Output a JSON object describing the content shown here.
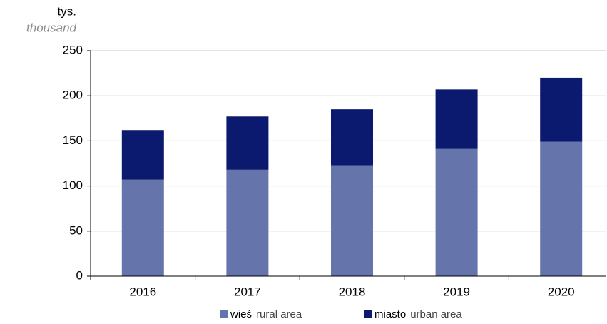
{
  "chart_data": {
    "type": "stacked_bar",
    "y_label": "tys.",
    "y_label_en": "thousand",
    "categories": [
      "2016",
      "2017",
      "2018",
      "2019",
      "2020"
    ],
    "series": [
      {
        "name": "wieś",
        "name_en": "rural area",
        "color": "#6674ac",
        "values": [
          107,
          118,
          123,
          141,
          149
        ]
      },
      {
        "name": "miasto",
        "name_en": "urban area",
        "color": "#0b1a6e",
        "values": [
          55,
          59,
          62,
          66,
          71
        ]
      }
    ],
    "ylim": [
      0,
      250
    ],
    "yticks": [
      0,
      50,
      100,
      150,
      200,
      250
    ],
    "grid": true
  }
}
